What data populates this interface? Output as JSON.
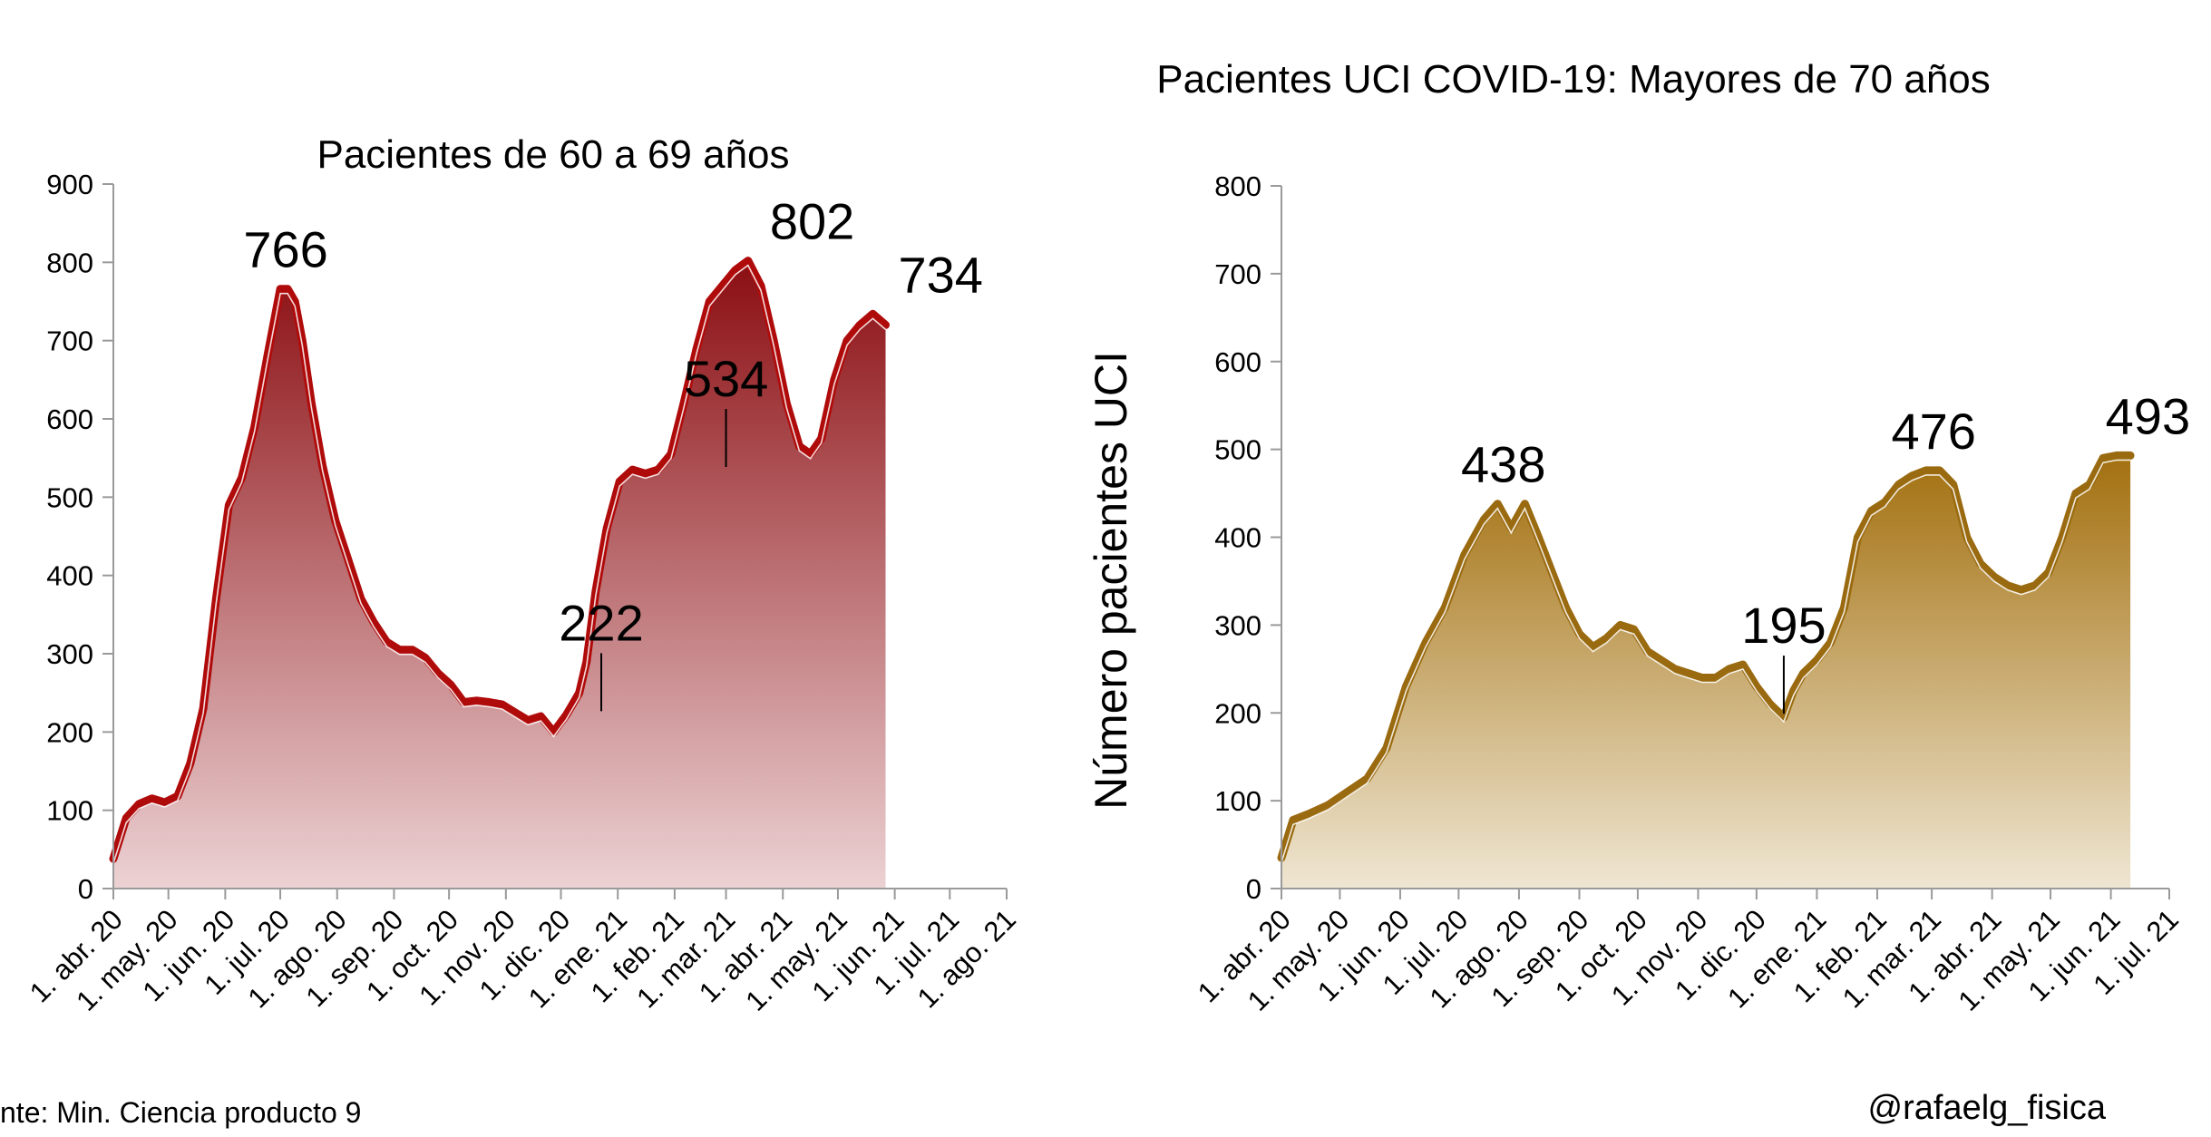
{
  "figure": {
    "source_note": "nte: Min. Ciencia producto 9",
    "handle": "@rafaelg_fisica"
  },
  "chart_data": [
    {
      "type": "area",
      "title": "Pacientes de 60 a 69 años",
      "ylabel": "",
      "ylim": [
        0,
        900
      ],
      "yticks": [
        "0",
        "100",
        "200",
        "300",
        "400",
        "500",
        "600",
        "700",
        "800",
        "900"
      ],
      "xlim": [
        "2020-04-01",
        "2021-08-01"
      ],
      "xtick_dates": [
        "2020-04-01",
        "2020-05-01",
        "2020-06-01",
        "2020-07-01",
        "2020-08-01",
        "2020-09-01",
        "2020-10-01",
        "2020-11-01",
        "2020-12-01",
        "2021-01-01",
        "2021-02-01",
        "2021-03-01",
        "2021-04-01",
        "2021-05-01",
        "2021-06-01",
        "2021-07-01",
        "2021-08-01"
      ],
      "xtick_labels": [
        "1. abr. 20",
        "1. may. 20",
        "1. jun. 20",
        "1. jul. 20",
        "1. ago. 20",
        "1. sep. 20",
        "1. oct. 20",
        "1. nov. 20",
        "1. dic. 20",
        "1. ene. 21",
        "1. feb. 21",
        "1. mar. 21",
        "1. abr. 21",
        "1. may. 21",
        "1. jun. 21",
        "1. jul. 21",
        "1. ago. 21"
      ],
      "line_color": "#b00b0b",
      "fill_top_color": "#8b0e12",
      "fill_bottom_color": "#ecd2d4",
      "grid": false,
      "series": [
        {
          "x": [
            "2020-04-01",
            "2020-04-08",
            "2020-04-15",
            "2020-04-22",
            "2020-04-29",
            "2020-05-06",
            "2020-05-13",
            "2020-05-20",
            "2020-05-27",
            "2020-06-03",
            "2020-06-10",
            "2020-06-17",
            "2020-06-24",
            "2020-07-01",
            "2020-07-05",
            "2020-07-09",
            "2020-07-13",
            "2020-07-18",
            "2020-07-24",
            "2020-07-31",
            "2020-08-07",
            "2020-08-14",
            "2020-08-21",
            "2020-08-28",
            "2020-09-04",
            "2020-09-11",
            "2020-09-18",
            "2020-09-25",
            "2020-10-02",
            "2020-10-09",
            "2020-10-16",
            "2020-10-23",
            "2020-10-30",
            "2020-11-06",
            "2020-11-13",
            "2020-11-20",
            "2020-11-27",
            "2020-12-04",
            "2020-12-11",
            "2020-12-15",
            "2020-12-20",
            "2020-12-26",
            "2021-01-02",
            "2021-01-09",
            "2021-01-16",
            "2021-01-23",
            "2021-01-30",
            "2021-02-06",
            "2021-02-13",
            "2021-02-20",
            "2021-02-27",
            "2021-03-06",
            "2021-03-13",
            "2021-03-20",
            "2021-03-27",
            "2021-04-03",
            "2021-04-10",
            "2021-04-16",
            "2021-04-22",
            "2021-04-29",
            "2021-05-06",
            "2021-05-13",
            "2021-05-20",
            "2021-05-27",
            "2021-06-03",
            "2021-06-10",
            "2021-06-17",
            "2021-06-24",
            "2021-06-27",
            "2021-06-30"
          ],
          "y": [
            38,
            90,
            108,
            115,
            110,
            118,
            160,
            230,
            370,
            490,
            525,
            590,
            680,
            766,
            766,
            750,
            700,
            620,
            540,
            470,
            420,
            370,
            340,
            315,
            305,
            305,
            295,
            275,
            260,
            238,
            240,
            238,
            235,
            225,
            215,
            220,
            200,
            222,
            250,
            290,
            380,
            460,
            520,
            535,
            530,
            535,
            555,
            620,
            690,
            750,
            770,
            790,
            802,
            770,
            700,
            620,
            565,
            555,
            575,
            650,
            700,
            720,
            734,
            720,
            0,
            0,
            0,
            0,
            0,
            0
          ]
        }
      ],
      "annotations": [
        {
          "label": "766",
          "date": "2020-07-04",
          "value": 766,
          "leader": false
        },
        {
          "label": "802",
          "date": "2021-04-17",
          "value": 802,
          "leader": false
        },
        {
          "label": "734",
          "date": "2021-06-26",
          "value": 734,
          "leader": false
        },
        {
          "label": "534",
          "date": "2021-03-01",
          "value": 534,
          "leader": true
        },
        {
          "label": "222",
          "date": "2020-12-23",
          "value": 222,
          "leader": true
        }
      ]
    },
    {
      "type": "area",
      "title": "Pacientes UCI COVID-19: Mayores de 70 años",
      "ylabel": "Número pacientes UCI",
      "ylim": [
        0,
        800
      ],
      "yticks": [
        "0",
        "100",
        "200",
        "300",
        "400",
        "500",
        "600",
        "700",
        "800"
      ],
      "xlim": [
        "2020-04-01",
        "2021-07-01"
      ],
      "xtick_dates": [
        "2020-04-01",
        "2020-05-01",
        "2020-06-01",
        "2020-07-01",
        "2020-08-01",
        "2020-09-01",
        "2020-10-01",
        "2020-11-01",
        "2020-12-01",
        "2021-01-01",
        "2021-02-01",
        "2021-03-01",
        "2021-04-01",
        "2021-05-01",
        "2021-06-01",
        "2021-07-01"
      ],
      "xtick_labels": [
        "1. abr. 20",
        "1. may. 20",
        "1. jun. 20",
        "1. jul. 20",
        "1. ago. 20",
        "1. sep. 20",
        "1. oct. 20",
        "1. nov. 20",
        "1. dic. 20",
        "1. ene. 21",
        "1. feb. 21",
        "1. mar. 21",
        "1. abr. 21",
        "1. may. 21",
        "1. jun. 21",
        "1. jul. 21"
      ],
      "line_color": "#9a6a10",
      "fill_top_color": "#a3700f",
      "fill_bottom_color": "#efe6d2",
      "grid": false,
      "series": [
        {
          "x": [
            "2020-04-01",
            "2020-04-07",
            "2020-04-15",
            "2020-04-25",
            "2020-05-05",
            "2020-05-15",
            "2020-05-25",
            "2020-06-04",
            "2020-06-14",
            "2020-06-24",
            "2020-07-04",
            "2020-07-14",
            "2020-07-21",
            "2020-07-28",
            "2020-08-04",
            "2020-08-11",
            "2020-08-18",
            "2020-08-25",
            "2020-09-01",
            "2020-09-08",
            "2020-09-15",
            "2020-09-22",
            "2020-09-29",
            "2020-10-06",
            "2020-10-13",
            "2020-10-20",
            "2020-10-27",
            "2020-11-03",
            "2020-11-10",
            "2020-11-17",
            "2020-11-24",
            "2020-12-01",
            "2020-12-08",
            "2020-12-15",
            "2020-12-20",
            "2020-12-25",
            "2021-01-01",
            "2021-01-08",
            "2021-01-15",
            "2021-01-22",
            "2021-01-29",
            "2021-02-05",
            "2021-02-12",
            "2021-02-19",
            "2021-02-26",
            "2021-03-05",
            "2021-03-12",
            "2021-03-19",
            "2021-03-26",
            "2021-04-02",
            "2021-04-09",
            "2021-04-16",
            "2021-04-23",
            "2021-04-30",
            "2021-05-07",
            "2021-05-14",
            "2021-05-21",
            "2021-05-28",
            "2021-06-04",
            "2021-06-11",
            "2021-06-18",
            "2021-06-25"
          ],
          "y": [
            35,
            78,
            85,
            95,
            110,
            125,
            160,
            230,
            280,
            320,
            380,
            420,
            438,
            410,
            438,
            400,
            360,
            320,
            290,
            275,
            285,
            300,
            295,
            270,
            260,
            250,
            245,
            240,
            240,
            250,
            255,
            230,
            210,
            195,
            225,
            245,
            260,
            280,
            320,
            400,
            430,
            440,
            460,
            470,
            476,
            476,
            460,
            400,
            370,
            355,
            345,
            340,
            345,
            360,
            400,
            450,
            460,
            490,
            493,
            493,
            0,
            0
          ]
        }
      ],
      "annotations": [
        {
          "label": "438",
          "date": "2020-07-24",
          "value": 438,
          "leader": false
        },
        {
          "label": "476",
          "date": "2021-03-02",
          "value": 476,
          "leader": false
        },
        {
          "label": "493",
          "date": "2021-06-20",
          "value": 493,
          "leader": false
        },
        {
          "label": "195",
          "date": "2020-12-15",
          "value": 195,
          "leader": true
        }
      ]
    }
  ]
}
